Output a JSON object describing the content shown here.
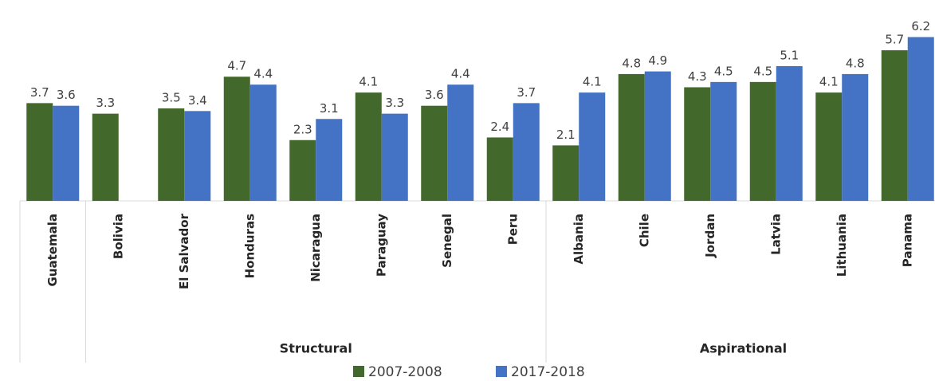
{
  "chart_data": {
    "type": "bar",
    "categories": [
      "Guatemala",
      "Bolivia",
      "El Salvador",
      "Honduras",
      "Nicaragua",
      "Paraguay",
      "Senegal",
      "Peru",
      "Albania",
      "Chile",
      "Jordan",
      "Latvia",
      "Lithuania",
      "Panama"
    ],
    "groups": [
      {
        "name": null,
        "size": 1
      },
      {
        "name": "Structural",
        "size": 7
      },
      {
        "name": "Aspirational",
        "size": 6
      }
    ],
    "series": [
      {
        "name": "2007-2008",
        "color": "#43682b",
        "values": [
          3.7,
          3.3,
          3.5,
          4.7,
          2.3,
          4.1,
          3.6,
          2.4,
          2.1,
          4.8,
          4.3,
          4.5,
          4.1,
          5.7
        ]
      },
      {
        "name": "2017-2018",
        "color": "#4472c4",
        "values": [
          3.6,
          null,
          3.4,
          4.4,
          3.1,
          3.3,
          4.4,
          3.7,
          4.1,
          4.9,
          4.5,
          5.1,
          4.8,
          6.2
        ]
      }
    ],
    "ylim": [
      0,
      7
    ],
    "legend": "bottom"
  }
}
